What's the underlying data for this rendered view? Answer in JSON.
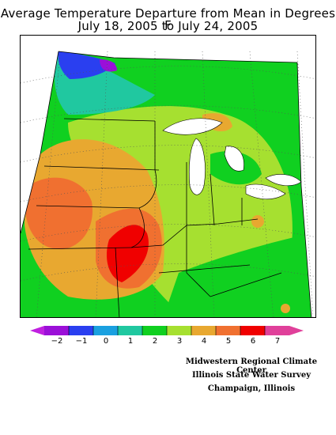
{
  "title": {
    "line1": "Average Temperature Departure from Mean in Degrees F",
    "line2": "July 18, 2005 to July 24, 2005"
  },
  "legend": {
    "ticks": [
      "−2",
      "−1",
      "0",
      "1",
      "2",
      "3",
      "4",
      "5",
      "6",
      "7"
    ],
    "colors": [
      "#9b10d8",
      "#2a3ff0",
      "#1aa0e0",
      "#20c8a0",
      "#10d020",
      "#a6e030",
      "#e8a830",
      "#f07030",
      "#f00000",
      "#e0409a"
    ]
  },
  "credits": {
    "line1": "Midwestern Regional Climate Center",
    "line2": "Illinois State Water Survey",
    "line3": "Champaign, Illinois"
  }
}
